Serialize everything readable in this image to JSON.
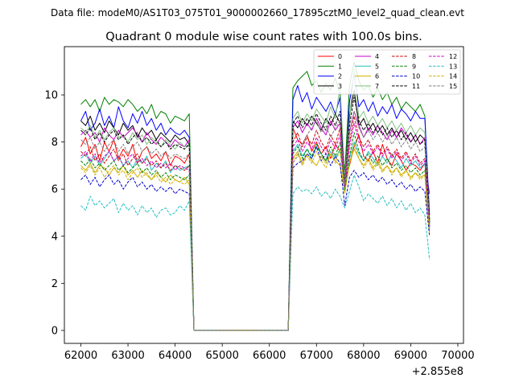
{
  "suptitle": "Data file: modeM0/AS1T03_075T01_9000002660_17895cztM0_level2_quad_clean.evt",
  "chart_data": {
    "type": "line",
    "title": "Quadrant 0 module wise count rates with 100.0s bins.",
    "xlabel": "",
    "ylabel": "",
    "x_offset_label": "+2.855e8",
    "xlim": [
      61650,
      70120
    ],
    "ylim": [
      -0.55,
      12.05
    ],
    "xticks": [
      62000,
      63000,
      64000,
      65000,
      66000,
      67000,
      68000,
      69000,
      70000
    ],
    "xtick_labels": [
      "62000",
      "63000",
      "64000",
      "65000",
      "66000",
      "67000",
      "68000",
      "69000",
      "70000"
    ],
    "yticks": [
      0,
      2,
      4,
      6,
      8,
      10
    ],
    "ytick_labels": [
      "0",
      "2",
      "4",
      "6",
      "8",
      "10"
    ],
    "legend_position": "top-right",
    "x_start": 62000,
    "x_step": 100,
    "series": [
      {
        "name": "0",
        "color": "#ff0000",
        "dash": "solid",
        "pre": [
          7.8,
          8.2,
          7.5,
          7.9,
          7.2,
          8.0,
          7.6,
          8.1,
          7.3,
          7.7,
          7.4,
          7.9,
          7.1,
          7.6,
          7.8,
          7.3,
          7.5,
          7.2,
          7.6,
          7.0,
          7.4,
          7.3,
          7.1,
          7.5
        ],
        "post": [
          8.6,
          8.1,
          7.9,
          8.3,
          7.6,
          8.0,
          7.5,
          7.8,
          7.3,
          7.9,
          7.6,
          6.4,
          7.0,
          7.8,
          8.3,
          7.4,
          7.2,
          7.6,
          7.1,
          7.9,
          7.3,
          7.0,
          7.5,
          7.2,
          6.8,
          7.1,
          7.0,
          6.8,
          7.1,
          5.8
        ]
      },
      {
        "name": "1",
        "color": "#008000",
        "dash": "solid",
        "pre": [
          9.6,
          9.8,
          9.5,
          9.8,
          9.3,
          9.9,
          9.6,
          9.8,
          9.7,
          9.5,
          9.8,
          9.6,
          9.3,
          9.5,
          9.2,
          9.6,
          9.0,
          9.3,
          9.2,
          8.8,
          9.1,
          9.0,
          8.9,
          9.2
        ],
        "post": [
          10.3,
          10.6,
          10.8,
          11.0,
          10.4,
          10.6,
          10.1,
          10.5,
          10.2,
          10.7,
          10.0,
          6.6,
          10.4,
          11.4,
          10.6,
          10.2,
          10.4,
          9.9,
          10.3,
          9.8,
          10.1,
          9.6,
          9.9,
          9.4,
          9.7,
          9.5,
          9.3,
          9.6,
          9.1,
          4.6
        ]
      },
      {
        "name": "2",
        "color": "#0000ff",
        "dash": "solid",
        "pre": [
          8.9,
          9.3,
          8.5,
          8.8,
          9.4,
          8.7,
          9.1,
          8.6,
          9.5,
          8.9,
          8.6,
          9.2,
          8.8,
          9.3,
          8.7,
          9.0,
          8.5,
          8.8,
          8.3,
          8.6,
          8.4,
          8.3,
          8.5,
          8.2
        ],
        "post": [
          9.8,
          10.4,
          9.7,
          10.1,
          9.4,
          9.9,
          9.6,
          9.3,
          9.7,
          9.2,
          9.9,
          6.0,
          9.7,
          10.9,
          9.5,
          9.8,
          9.3,
          9.7,
          9.1,
          9.5,
          9.2,
          9.6,
          9.0,
          9.4,
          9.2,
          8.9,
          9.3,
          9.0,
          9.0,
          4.9
        ]
      },
      {
        "name": "3",
        "color": "#000000",
        "dash": "solid",
        "pre": [
          8.9,
          8.7,
          9.1,
          8.5,
          8.8,
          8.4,
          8.9,
          8.6,
          8.3,
          8.8,
          8.5,
          8.7,
          8.2,
          8.6,
          8.3,
          8.5,
          8.1,
          8.4,
          8.2,
          8.0,
          8.3,
          8.1,
          8.2,
          7.9
        ],
        "post": [
          8.9,
          8.6,
          9.0,
          8.7,
          9.1,
          8.8,
          8.5,
          9.0,
          8.7,
          9.2,
          8.8,
          6.6,
          9.1,
          10.2,
          8.7,
          9.0,
          8.5,
          8.8,
          8.4,
          8.7,
          8.3,
          8.6,
          8.2,
          8.5,
          8.1,
          8.4,
          8.0,
          8.3,
          8.1,
          4.7
        ]
      },
      {
        "name": "4",
        "color": "#cc00cc",
        "dash": "solid",
        "pre": [
          8.3,
          8.5,
          8.2,
          8.4,
          8.0,
          8.6,
          8.3,
          8.1,
          8.5,
          8.2,
          8.4,
          8.6,
          8.3,
          8.0,
          8.4,
          8.1,
          7.9,
          8.2,
          8.0,
          7.8,
          8.1,
          7.9,
          7.8,
          8.1
        ],
        "post": [
          8.6,
          8.9,
          8.4,
          8.8,
          8.5,
          9.0,
          8.6,
          8.3,
          8.9,
          8.5,
          8.8,
          6.2,
          8.4,
          9.3,
          8.7,
          8.2,
          8.6,
          8.3,
          8.7,
          8.4,
          8.1,
          8.5,
          8.2,
          8.6,
          8.3,
          8.0,
          8.3,
          7.9,
          8.2,
          4.5
        ]
      },
      {
        "name": "5",
        "color": "#20c0c0",
        "dash": "solid",
        "pre": [
          7.3,
          7.5,
          7.1,
          7.4,
          7.0,
          7.3,
          7.6,
          7.2,
          7.4,
          7.0,
          7.2,
          6.9,
          7.3,
          7.1,
          7.4,
          6.8,
          7.1,
          6.9,
          7.2,
          6.7,
          7.0,
          6.8,
          6.9,
          7.0
        ],
        "post": [
          7.6,
          7.9,
          7.4,
          7.7,
          7.3,
          7.8,
          7.5,
          7.2,
          7.6,
          7.3,
          7.7,
          5.9,
          7.3,
          8.0,
          7.5,
          7.2,
          7.6,
          7.3,
          7.0,
          7.4,
          7.1,
          7.5,
          7.2,
          6.9,
          7.3,
          7.0,
          7.2,
          6.9,
          7.1,
          4.3
        ]
      },
      {
        "name": "6",
        "color": "#d0b000",
        "dash": "solid",
        "pre": [
          7.0,
          6.8,
          7.1,
          6.7,
          7.0,
          6.9,
          6.6,
          6.9,
          6.7,
          7.0,
          6.6,
          6.8,
          6.5,
          6.8,
          6.6,
          6.4,
          6.7,
          6.5,
          6.3,
          6.6,
          6.4,
          6.3,
          6.5,
          6.2
        ],
        "post": [
          7.3,
          7.6,
          7.1,
          7.5,
          7.2,
          7.0,
          7.4,
          7.1,
          7.5,
          7.2,
          7.0,
          5.9,
          7.1,
          7.7,
          7.3,
          7.0,
          7.3,
          6.9,
          7.2,
          6.8,
          7.0,
          6.7,
          6.9,
          6.6,
          6.8,
          6.5,
          6.7,
          6.5,
          6.6,
          4.1
        ]
      },
      {
        "name": "7",
        "color": "#80c080",
        "dash": "solid",
        "pre": [
          8.6,
          8.4,
          8.7,
          8.2,
          8.5,
          8.1,
          8.4,
          8.6,
          8.2,
          8.3,
          8.0,
          8.4,
          8.1,
          8.3,
          7.9,
          8.2,
          8.0,
          7.8,
          8.1,
          7.9,
          7.7,
          8.0,
          7.8,
          7.9
        ],
        "post": [
          9.0,
          9.3,
          8.8,
          9.2,
          8.9,
          9.4,
          9.1,
          8.8,
          9.5,
          9.0,
          10.4,
          6.5,
          8.9,
          11.1,
          9.0,
          9.3,
          8.8,
          9.1,
          8.7,
          9.0,
          8.6,
          8.9,
          8.5,
          8.8,
          8.4,
          8.7,
          8.3,
          8.6,
          8.4,
          4.5
        ]
      },
      {
        "name": "8",
        "color": "#cc0000",
        "dash": "dashed",
        "pre": [
          7.6,
          7.4,
          7.8,
          7.2,
          7.5,
          7.1,
          7.4,
          7.7,
          7.2,
          7.5,
          7.0,
          7.3,
          7.5,
          7.1,
          7.3,
          7.0,
          7.2,
          6.9,
          7.1,
          6.8,
          7.0,
          6.9,
          6.8,
          7.0
        ],
        "post": [
          8.0,
          8.4,
          7.8,
          8.2,
          7.9,
          8.5,
          8.0,
          7.7,
          8.3,
          7.9,
          8.6,
          6.2,
          8.0,
          9.1,
          8.2,
          7.8,
          8.1,
          7.6,
          7.9,
          7.5,
          7.8,
          7.4,
          7.7,
          7.3,
          7.6,
          7.2,
          7.5,
          7.1,
          7.3,
          4.4
        ]
      },
      {
        "name": "9",
        "color": "#008000",
        "dash": "dashed",
        "pre": [
          7.2,
          7.0,
          7.3,
          6.9,
          7.1,
          6.8,
          7.0,
          7.2,
          6.8,
          7.0,
          6.7,
          6.9,
          7.1,
          6.7,
          6.9,
          6.6,
          6.8,
          6.5,
          6.7,
          6.4,
          6.6,
          6.5,
          6.4,
          6.6
        ],
        "post": [
          7.5,
          7.8,
          7.3,
          7.7,
          7.4,
          7.9,
          7.5,
          7.2,
          7.8,
          7.4,
          8.0,
          5.9,
          7.4,
          8.4,
          7.6,
          7.2,
          7.5,
          7.1,
          7.4,
          7.0,
          7.3,
          6.9,
          7.1,
          6.8,
          7.0,
          6.7,
          6.9,
          6.6,
          6.8,
          4.2
        ]
      },
      {
        "name": "10",
        "color": "#0000cc",
        "dash": "dashed",
        "pre": [
          6.4,
          6.6,
          6.2,
          6.5,
          6.1,
          6.4,
          6.6,
          6.2,
          6.4,
          6.0,
          6.3,
          6.5,
          6.1,
          6.3,
          6.0,
          6.2,
          5.9,
          6.1,
          5.9,
          6.1,
          5.8,
          6.0,
          5.9,
          5.8
        ],
        "post": [
          6.9,
          7.1,
          7.2,
          7.5,
          7.3,
          7.8,
          7.2,
          7.5,
          7.0,
          7.4,
          7.1,
          5.3,
          6.5,
          6.8,
          6.5,
          6.7,
          6.4,
          6.6,
          6.3,
          6.5,
          6.2,
          6.4,
          6.1,
          6.3,
          6.0,
          6.2,
          5.9,
          6.1,
          5.9,
          4.0
        ]
      },
      {
        "name": "11",
        "color": "#000000",
        "dash": "dashed",
        "pre": [
          8.5,
          8.3,
          8.6,
          8.1,
          8.4,
          8.0,
          8.3,
          8.5,
          8.1,
          8.3,
          7.9,
          8.2,
          8.4,
          8.0,
          8.2,
          7.9,
          8.1,
          7.8,
          8.0,
          7.7,
          7.9,
          7.8,
          7.7,
          7.9
        ],
        "post": [
          8.8,
          9.1,
          8.6,
          9.0,
          8.7,
          9.2,
          8.8,
          8.5,
          9.1,
          8.7,
          9.3,
          6.3,
          8.7,
          9.9,
          8.9,
          8.5,
          8.8,
          8.4,
          8.7,
          8.3,
          8.6,
          8.2,
          8.5,
          8.1,
          8.4,
          8.0,
          8.3,
          7.9,
          8.1,
          4.6
        ]
      },
      {
        "name": "12",
        "color": "#cc00cc",
        "dash": "dashed",
        "pre": [
          7.4,
          7.6,
          7.2,
          7.5,
          7.1,
          7.4,
          7.6,
          7.2,
          7.4,
          7.0,
          7.3,
          7.5,
          7.1,
          7.3,
          7.0,
          7.2,
          6.9,
          7.1,
          6.9,
          7.1,
          6.8,
          7.0,
          6.9,
          6.8
        ],
        "post": [
          7.8,
          8.1,
          7.6,
          8.0,
          7.7,
          8.2,
          7.8,
          7.5,
          8.1,
          7.7,
          8.3,
          6.1,
          7.8,
          8.8,
          8.0,
          7.6,
          7.9,
          7.5,
          7.8,
          7.4,
          7.7,
          7.3,
          7.6,
          7.2,
          7.5,
          7.1,
          7.4,
          7.0,
          7.2,
          4.4
        ]
      },
      {
        "name": "13",
        "color": "#20c0c0",
        "dash": "dashed",
        "pre": [
          5.3,
          5.1,
          5.7,
          5.3,
          5.5,
          5.2,
          5.4,
          5.6,
          5.0,
          5.4,
          5.1,
          5.3,
          4.9,
          5.3,
          5.0,
          5.2,
          4.8,
          5.1,
          5.2,
          4.9,
          5.0,
          5.3,
          5.1,
          5.5
        ],
        "post": [
          5.8,
          6.1,
          5.9,
          6.0,
          5.8,
          6.1,
          5.7,
          5.9,
          5.6,
          6.0,
          5.7,
          5.2,
          5.9,
          6.6,
          6.1,
          5.5,
          5.8,
          5.6,
          5.4,
          5.7,
          5.3,
          5.6,
          5.2,
          5.5,
          5.1,
          5.4,
          5.0,
          5.2,
          4.9,
          3.0
        ]
      },
      {
        "name": "14",
        "color": "#d0b000",
        "dash": "dashed",
        "pre": [
          6.9,
          6.7,
          7.0,
          6.6,
          6.9,
          6.5,
          6.8,
          7.0,
          6.6,
          6.8,
          6.4,
          6.7,
          6.9,
          6.5,
          6.7,
          6.4,
          6.6,
          6.3,
          6.5,
          6.2,
          6.4,
          6.3,
          6.2,
          6.4
        ],
        "post": [
          7.2,
          7.5,
          7.0,
          7.4,
          7.1,
          7.6,
          7.2,
          6.9,
          7.5,
          7.1,
          7.7,
          5.8,
          7.1,
          7.9,
          7.3,
          6.9,
          7.2,
          6.8,
          7.1,
          6.7,
          7.0,
          6.6,
          6.9,
          6.5,
          6.8,
          6.4,
          6.7,
          6.4,
          6.6,
          4.1
        ]
      },
      {
        "name": "15",
        "color": "#808080",
        "dash": "dashed",
        "pre": [
          8.1,
          7.9,
          8.2,
          7.7,
          8.0,
          7.6,
          7.9,
          8.1,
          7.6,
          7.9,
          7.5,
          7.8,
          8.0,
          7.6,
          7.8,
          7.5,
          7.7,
          7.4,
          7.6,
          7.3,
          7.5,
          7.4,
          7.3,
          7.5
        ],
        "post": [
          7.1,
          7.4,
          7.9,
          8.3,
          8.6,
          8.9,
          8.4,
          8.7,
          8.2,
          8.6,
          8.9,
          6.2,
          8.4,
          9.3,
          8.6,
          8.2,
          8.5,
          8.1,
          8.4,
          8.0,
          8.3,
          7.9,
          8.2,
          7.8,
          8.1,
          7.7,
          8.0,
          7.6,
          7.8,
          4.4
        ]
      }
    ]
  }
}
